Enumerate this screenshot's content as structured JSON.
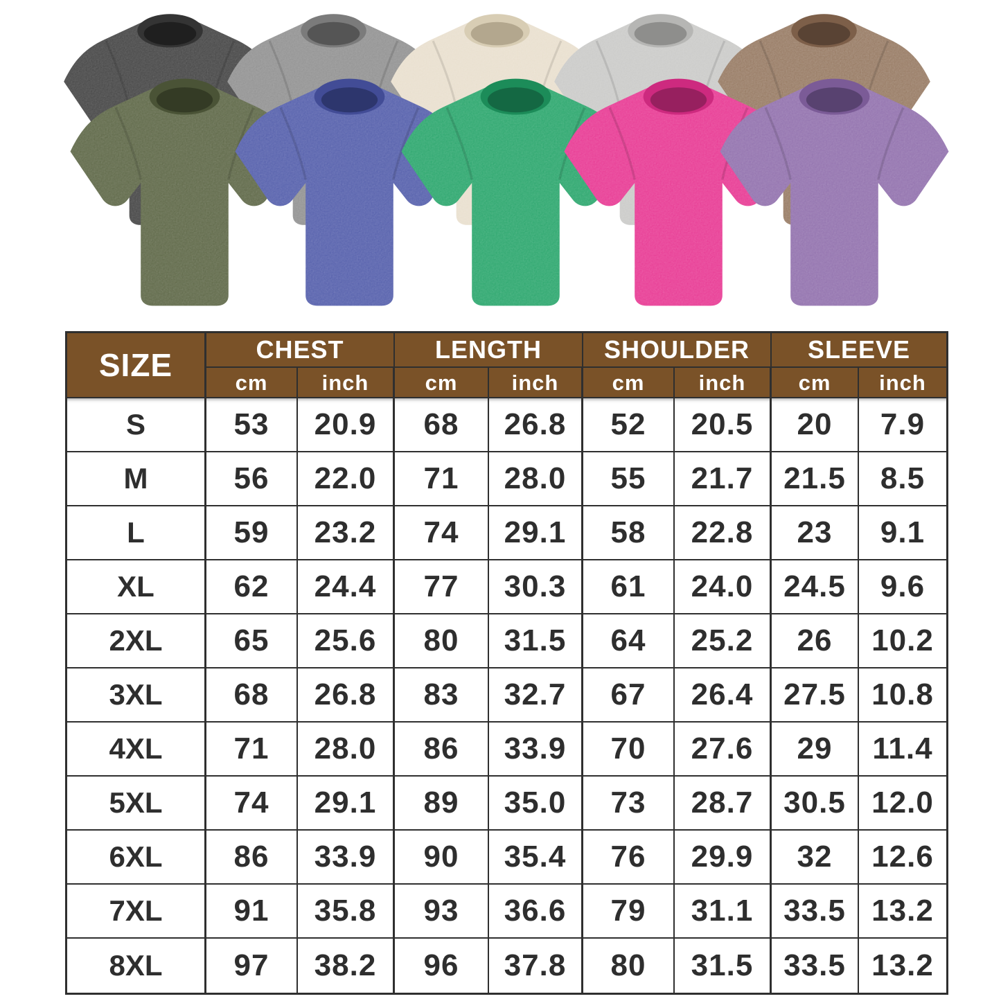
{
  "gallery": {
    "description": "two overlapping rows of washed oversized t-shirts",
    "shirts": [
      {
        "name": "black",
        "color": "#3d3d3d",
        "collar": "#343434",
        "neck": "#1f1f1f"
      },
      {
        "name": "gray",
        "color": "#8d8d8d",
        "collar": "#7b7b7b",
        "neck": "#555555"
      },
      {
        "name": "cream",
        "color": "#e8decc",
        "collar": "#d8cdb4",
        "neck": "#b3a78e"
      },
      {
        "name": "light-gray",
        "color": "#c8c8c6",
        "collar": "#b6b6b4",
        "neck": "#8e8e8c"
      },
      {
        "name": "brown",
        "color": "#8f7057",
        "collar": "#7d5f49",
        "neck": "#594334"
      },
      {
        "name": "army-green",
        "color": "#57613f",
        "collar": "#4a5336",
        "neck": "#343b25"
      },
      {
        "name": "blue",
        "color": "#4d58a8",
        "collar": "#424c96",
        "neck": "#2d366d"
      },
      {
        "name": "green",
        "color": "#22a367",
        "collar": "#1c8c59",
        "neck": "#146843"
      },
      {
        "name": "hot-pink",
        "color": "#e7318f",
        "collar": "#cd2a7f",
        "neck": "#97205f"
      },
      {
        "name": "purple",
        "color": "#8d6baa",
        "collar": "#7b5b97",
        "neck": "#584270"
      }
    ]
  },
  "styles": {
    "header_bg": "#7a5228",
    "header_text": "#ffffff",
    "border_color": "#2f2f2f",
    "cell_text": "#2e2e2e"
  },
  "chart_data": {
    "type": "table",
    "size_header": "SIZE",
    "groups": [
      "CHEST",
      "LENGTH",
      "SHOULDER",
      "SLEEVE"
    ],
    "units": [
      "cm",
      "inch"
    ],
    "columns": [
      "SIZE",
      "CHEST cm",
      "CHEST inch",
      "LENGTH cm",
      "LENGTH inch",
      "SHOULDER cm",
      "SHOULDER inch",
      "SLEEVE cm",
      "SLEEVE inch"
    ],
    "rows": [
      {
        "size": "S",
        "values": [
          "53",
          "20.9",
          "68",
          "26.8",
          "52",
          "20.5",
          "20",
          "7.9"
        ]
      },
      {
        "size": "M",
        "values": [
          "56",
          "22.0",
          "71",
          "28.0",
          "55",
          "21.7",
          "21.5",
          "8.5"
        ]
      },
      {
        "size": "L",
        "values": [
          "59",
          "23.2",
          "74",
          "29.1",
          "58",
          "22.8",
          "23",
          "9.1"
        ]
      },
      {
        "size": "XL",
        "values": [
          "62",
          "24.4",
          "77",
          "30.3",
          "61",
          "24.0",
          "24.5",
          "9.6"
        ]
      },
      {
        "size": "2XL",
        "values": [
          "65",
          "25.6",
          "80",
          "31.5",
          "64",
          "25.2",
          "26",
          "10.2"
        ]
      },
      {
        "size": "3XL",
        "values": [
          "68",
          "26.8",
          "83",
          "32.7",
          "67",
          "26.4",
          "27.5",
          "10.8"
        ]
      },
      {
        "size": "4XL",
        "values": [
          "71",
          "28.0",
          "86",
          "33.9",
          "70",
          "27.6",
          "29",
          "11.4"
        ]
      },
      {
        "size": "5XL",
        "values": [
          "74",
          "29.1",
          "89",
          "35.0",
          "73",
          "28.7",
          "30.5",
          "12.0"
        ]
      },
      {
        "size": "6XL",
        "values": [
          "86",
          "33.9",
          "90",
          "35.4",
          "76",
          "29.9",
          "32",
          "12.6"
        ]
      },
      {
        "size": "7XL",
        "values": [
          "91",
          "35.8",
          "93",
          "36.6",
          "79",
          "31.1",
          "33.5",
          "13.2"
        ]
      },
      {
        "size": "8XL",
        "values": [
          "97",
          "38.2",
          "96",
          "37.8",
          "80",
          "31.5",
          "33.5",
          "13.2"
        ]
      }
    ]
  }
}
